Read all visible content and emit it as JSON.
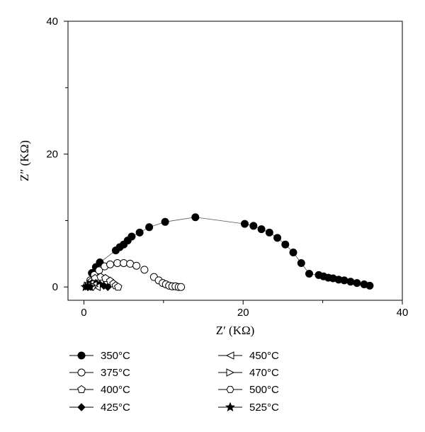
{
  "chart_data": {
    "type": "scatter",
    "xlabel": "Z′ (KΩ)",
    "ylabel": "Z″ (KΩ)",
    "xlim": [
      -2,
      40
    ],
    "ylim": [
      -2,
      40
    ],
    "xticks": [
      0,
      20,
      40
    ],
    "yticks": [
      0,
      20,
      40
    ],
    "grid": false,
    "legend_position": "below-plot",
    "series": [
      {
        "name": "350°C",
        "marker": "filled-circle",
        "line": true,
        "x": [
          1.0,
          1.5,
          2.0,
          4.0,
          4.5,
          5.0,
          5.5,
          6.0,
          7.0,
          8.2,
          10.2,
          14.0,
          20.2,
          21.3,
          22.3,
          23.3,
          24.3,
          25.3,
          26.3,
          27.3,
          28.3,
          29.5,
          30.1,
          30.7,
          31.3,
          32.0,
          32.7,
          33.5,
          34.3,
          35.2,
          35.9
        ],
        "y": [
          2.1,
          3.0,
          3.7,
          5.5,
          6.0,
          6.4,
          7.0,
          7.6,
          8.2,
          9.0,
          9.8,
          10.5,
          9.5,
          9.2,
          8.7,
          8.2,
          7.4,
          6.4,
          5.2,
          3.6,
          2.0,
          1.8,
          1.6,
          1.4,
          1.3,
          1.1,
          1.0,
          0.8,
          0.6,
          0.4,
          0.2
        ]
      },
      {
        "name": "375°C",
        "marker": "open-circle",
        "line": false,
        "x": [
          0.8,
          1.3,
          1.9,
          2.6,
          3.3,
          4.2,
          5.0,
          5.8,
          6.6,
          7.6,
          8.8,
          9.4,
          9.9,
          10.3,
          10.7,
          11.1,
          11.5,
          11.9,
          12.2
        ],
        "y": [
          1.0,
          1.8,
          2.5,
          3.1,
          3.4,
          3.6,
          3.6,
          3.5,
          3.2,
          2.6,
          1.5,
          1.0,
          0.6,
          0.4,
          0.2,
          0.1,
          0.1,
          0.0,
          0.0
        ]
      },
      {
        "name": "400°C",
        "marker": "open-pentagon",
        "line": false,
        "x": [
          0.9,
          1.4,
          2.1,
          2.7,
          3.3,
          3.7,
          4.0,
          4.3
        ],
        "y": [
          0.8,
          1.3,
          1.5,
          1.3,
          0.9,
          0.5,
          0.2,
          0.0
        ]
      },
      {
        "name": "425°C",
        "marker": "filled-diamond",
        "line": false,
        "x": [
          0.6,
          1.0,
          1.5,
          2.0,
          2.5,
          3.0
        ],
        "y": [
          0.4,
          0.6,
          0.6,
          0.4,
          0.2,
          0.0
        ]
      },
      {
        "name": "450°C",
        "marker": "triangle-left",
        "line": false,
        "x": [
          0.4,
          0.8,
          1.2,
          1.6
        ],
        "y": [
          0.3,
          0.5,
          0.3,
          0.0
        ]
      },
      {
        "name": "470°C",
        "marker": "triangle-right",
        "line": false,
        "x": [
          0.5,
          0.9,
          1.3
        ],
        "y": [
          0.2,
          0.3,
          0.1
        ]
      },
      {
        "name": "500°C",
        "marker": "open-hexagon",
        "line": false,
        "x": [
          0.3,
          0.7,
          1.0
        ],
        "y": [
          0.2,
          0.2,
          0.0
        ]
      },
      {
        "name": "525°C",
        "marker": "star",
        "line": false,
        "x": [
          0.2,
          0.5,
          0.8
        ],
        "y": [
          0.0,
          0.1,
          0.0
        ]
      }
    ]
  }
}
